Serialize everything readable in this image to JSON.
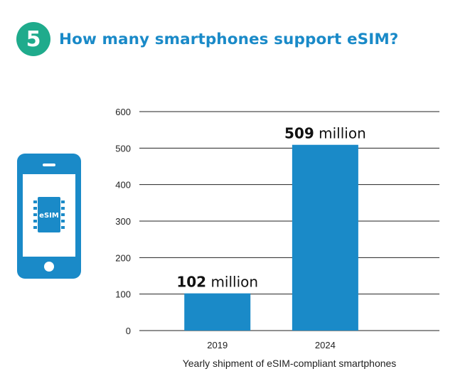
{
  "header": {
    "badge": "5",
    "title": "How many smartphones support eSIM?"
  },
  "phone_icon": {
    "icon": "esim-phone-icon",
    "chip_label": "eSIM",
    "color": "#1a8ac8"
  },
  "colors": {
    "bar": "#1a8ac8",
    "badge": "#1fab8c",
    "title": "#1a8ac8",
    "grid": "#222222"
  },
  "chart_data": {
    "type": "bar",
    "categories": [
      "2019",
      "2024"
    ],
    "values": [
      102,
      509
    ],
    "value_labels": [
      {
        "number": "102",
        "unit": "million"
      },
      {
        "number": "509",
        "unit": "million"
      }
    ],
    "yticks": [
      0,
      100,
      200,
      300,
      400,
      500,
      600
    ],
    "ylim": [
      0,
      600
    ],
    "xlabel": "Yearly shipment of eSIM-compliant smartphones",
    "ylabel": "",
    "grid": true,
    "legend": "none"
  }
}
